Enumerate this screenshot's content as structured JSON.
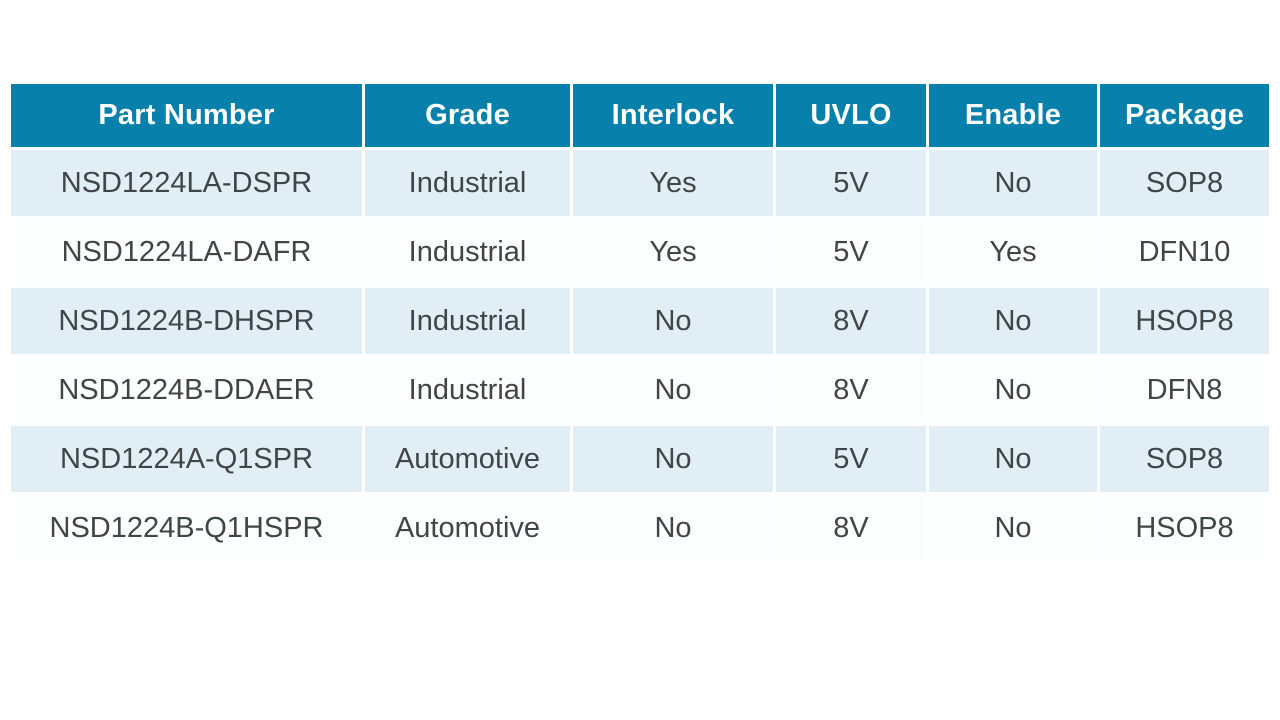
{
  "table": {
    "name": "part-selection-table",
    "columns": [
      {
        "label": "Part Number"
      },
      {
        "label": "Grade"
      },
      {
        "label": "Interlock"
      },
      {
        "label": "UVLO"
      },
      {
        "label": "Enable"
      },
      {
        "label": "Package"
      }
    ],
    "rows": [
      {
        "cells": [
          "NSD1224LA-DSPR",
          "Industrial",
          "Yes",
          "5V",
          "No",
          "SOP8"
        ]
      },
      {
        "cells": [
          "NSD1224LA-DAFR",
          "Industrial",
          "Yes",
          "5V",
          "Yes",
          "DFN10"
        ]
      },
      {
        "cells": [
          "NSD1224B-DHSPR",
          "Industrial",
          "No",
          "8V",
          "No",
          "HSOP8"
        ]
      },
      {
        "cells": [
          "NSD1224B-DDAER",
          "Industrial",
          "No",
          "8V",
          "No",
          "DFN8"
        ]
      },
      {
        "cells": [
          "NSD1224A-Q1SPR",
          "Automotive",
          "No",
          "5V",
          "No",
          "SOP8"
        ]
      },
      {
        "cells": [
          "NSD1224B-Q1HSPR",
          "Automotive",
          "No",
          "8V",
          "No",
          "HSOP8"
        ]
      }
    ],
    "colors": {
      "header_bg": "#0780ab",
      "header_text": "#ffffff",
      "row_alt_bg": "#e2eef5",
      "row_bg": "#fdfefe",
      "body_text": "#404548",
      "divider": "#ffffff",
      "page_bg": "#ffffff"
    }
  }
}
